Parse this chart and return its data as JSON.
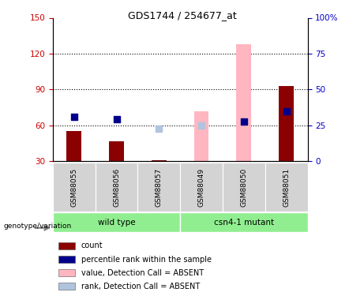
{
  "title": "GDS1744 / 254677_at",
  "samples": [
    "GSM88055",
    "GSM88056",
    "GSM88057",
    "GSM88049",
    "GSM88050",
    "GSM88051"
  ],
  "bar_values": [
    55,
    47,
    31,
    null,
    null,
    93
  ],
  "bar_color_present": "#8B0000",
  "bar_color_absent": "#FFB6C1",
  "absent_bar_values": [
    null,
    null,
    null,
    72,
    128,
    null
  ],
  "dot_values_present": [
    67,
    65,
    null,
    null,
    63,
    72
  ],
  "dot_values_absent": [
    null,
    null,
    57,
    60,
    null,
    null
  ],
  "dot_color_present": "#00008B",
  "dot_color_absent": "#B0C4DE",
  "ylim_left": [
    30,
    150
  ],
  "ylim_right": [
    0,
    100
  ],
  "yticks_left": [
    30,
    60,
    90,
    120,
    150
  ],
  "yticks_right": [
    0,
    25,
    50,
    75,
    100
  ],
  "ytick_labels_right": [
    "0",
    "25",
    "50",
    "75",
    "100%"
  ],
  "hlines": [
    60,
    90,
    120
  ],
  "tick_color_left": "#CC0000",
  "tick_color_right": "#0000CC",
  "legend_items": [
    {
      "label": "count",
      "color": "#8B0000"
    },
    {
      "label": "percentile rank within the sample",
      "color": "#00008B"
    },
    {
      "label": "value, Detection Call = ABSENT",
      "color": "#FFB6C1"
    },
    {
      "label": "rank, Detection Call = ABSENT",
      "color": "#B0C4DE"
    }
  ],
  "bar_width": 0.35,
  "dot_size": 35,
  "wt_samples": [
    0,
    1,
    2
  ],
  "mut_samples": [
    3,
    4,
    5
  ],
  "wt_label": "wild type",
  "mut_label": "csn4-1 mutant",
  "genotype_label": "genotype/variation",
  "sample_bg_color": "#D3D3D3",
  "group_bg_color": "#90EE90",
  "title_fontsize": 9,
  "axis_fontsize": 7.5,
  "legend_fontsize": 7,
  "sample_fontsize": 6.5
}
